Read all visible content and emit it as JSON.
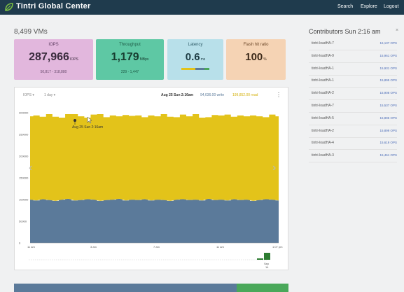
{
  "app": {
    "title": "Tintri Global Center"
  },
  "nav": {
    "search": "Search",
    "explore": "Explore",
    "logout": "Logout"
  },
  "summary": {
    "vm_count": "8,499 VMs"
  },
  "tiles": {
    "iops": {
      "label": "IOPS",
      "value": "287,966",
      "unit": "IOPS",
      "sub": "50,817 - 318,880",
      "color": "#e2b7dd"
    },
    "throughput": {
      "label": "Throughput",
      "value": "1,179",
      "unit": "MBps",
      "sub": "229 - 1,447",
      "color": "#5ec8a4"
    },
    "latency": {
      "label": "Latency",
      "value": "0.6",
      "unit": "ms",
      "color": "#b8e0ea"
    },
    "flash": {
      "label": "Flash hit ratio",
      "value": "100",
      "unit": "%",
      "color": "#f5d3b4"
    }
  },
  "chart_controls": {
    "metric": "IOPS ▾",
    "range": "1 day ▾"
  },
  "chart_header": {
    "timestamp": "Aug 25 Sun 2:16am",
    "write": "94,036.00 write",
    "read": "199,852.00 read",
    "write_color": "#5b7a9a",
    "read_color": "#e3c31a"
  },
  "chart_tooltip": "Aug 25 Sun 2:16am",
  "chart_data": {
    "type": "area",
    "stacked": true,
    "x_ticks": [
      "11 am",
      "3 am",
      "7 am",
      "11 am",
      "1:07 pm"
    ],
    "y_ticks": [
      "0",
      "50000",
      "100000",
      "150000",
      "200000",
      "250000",
      "300000"
    ],
    "ylim": [
      0,
      310000
    ],
    "series": [
      {
        "name": "write",
        "color": "#5b7a9a",
        "values": [
          100000,
          98000,
          101000,
          99000,
          97000,
          100000,
          102000,
          98000,
          99000,
          101000,
          100000,
          97000,
          99000,
          100000,
          102000,
          98000,
          100000,
          99000,
          101000,
          98000,
          100000,
          99000,
          97000,
          100000,
          101000,
          99000,
          100000,
          98000,
          102000,
          99000,
          100000,
          98000,
          101000,
          99000,
          100000,
          97000,
          99000,
          101000,
          100000,
          98000
        ]
      },
      {
        "name": "read",
        "color": "#e3c31a",
        "values": [
          192000,
          196000,
          190000,
          198000,
          194000,
          189000,
          195000,
          199000,
          193000,
          188000,
          196000,
          200000,
          191000,
          194000,
          190000,
          197000,
          193000,
          195000,
          189000,
          196000,
          192000,
          198000,
          194000,
          190000,
          195000,
          193000,
          197000,
          191000,
          188000,
          196000,
          194000,
          198000,
          190000,
          195000,
          192000,
          197000,
          193000,
          189000,
          196000,
          194000
        ]
      }
    ],
    "grid": false,
    "legend": "top-center"
  },
  "nav_arrows": {
    "prev": "‹",
    "next": "›"
  },
  "timeline": {
    "date_label": "Sep",
    "date_sub": "14"
  },
  "contributors": {
    "title": "Contributors Sun 2:16 am",
    "close": "×",
    "rows": [
      {
        "name": "tintri-loadHA-7",
        "value": "16,137 OPS"
      },
      {
        "name": "tintri-loadHA-9",
        "value": "15,961 OPS"
      },
      {
        "name": "tintri-loadHA-1",
        "value": "15,931 OPS"
      },
      {
        "name": "tintri-loadHA-1",
        "value": "15,895 OPS"
      },
      {
        "name": "tintri-loadHA-2",
        "value": "15,908 OPS"
      },
      {
        "name": "tintri-loadHA-7",
        "value": "15,537 OPS"
      },
      {
        "name": "tintri-loadHA-5",
        "value": "15,895 OPS"
      },
      {
        "name": "tintri-loadHA-2",
        "value": "15,899 OPS"
      },
      {
        "name": "tintri-loadHA-4",
        "value": "15,619 OPS"
      },
      {
        "name": "tintri-loadHA-3",
        "value": "15,461 OPS"
      }
    ]
  },
  "bottom_bar": {
    "left_color": "#5b7a9a",
    "right_color": "#4aa85a"
  }
}
